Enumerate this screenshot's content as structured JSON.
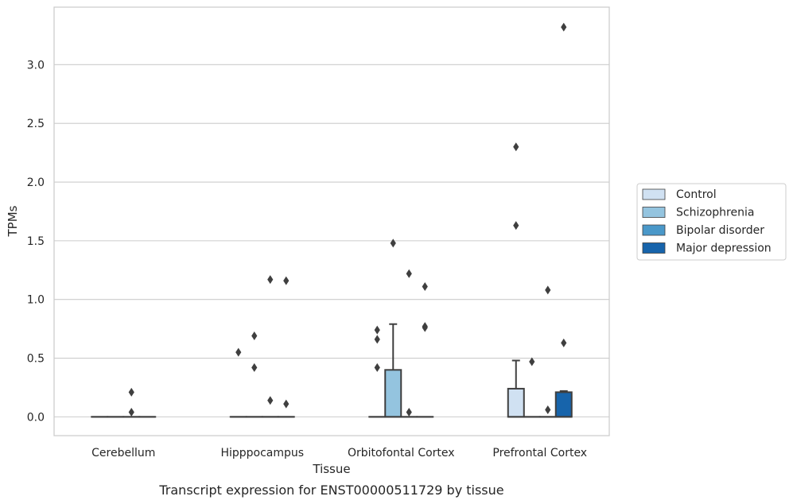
{
  "chart_data": {
    "type": "box",
    "xlabel": "Tissue",
    "ylabel": "TPMs",
    "caption": "Transcript expression for ENST00000511729 by tissue",
    "ylim": [
      -0.16,
      3.49
    ],
    "yticks": [
      "0.0",
      "0.5",
      "1.0",
      "1.5",
      "2.0",
      "2.5",
      "3.0"
    ],
    "grid": "horizontal",
    "legend_placement": "right",
    "categories": [
      "Cerebellum",
      "Hipppocampus",
      "Orbitofontal Cortex",
      "Prefrontal Cortex"
    ],
    "series": [
      {
        "name": "Control",
        "color": "#d0e1f2"
      },
      {
        "name": "Schizophrenia",
        "color": "#94c4df"
      },
      {
        "name": "Bipolar disorder",
        "color": "#4a98c9"
      },
      {
        "name": "Major depression",
        "color": "#1764ab"
      }
    ],
    "boxes": [
      {
        "category": 0,
        "series": 0,
        "q1": 0,
        "median": 0,
        "q3": 0,
        "whisker_low": 0,
        "whisker_high": 0,
        "outliers": []
      },
      {
        "category": 0,
        "series": 1,
        "q1": 0,
        "median": 0,
        "q3": 0,
        "whisker_low": 0,
        "whisker_high": 0,
        "outliers": []
      },
      {
        "category": 0,
        "series": 2,
        "q1": 0,
        "median": 0,
        "q3": 0,
        "whisker_low": 0,
        "whisker_high": 0,
        "outliers": [
          0.21,
          0.04
        ]
      },
      {
        "category": 0,
        "series": 3,
        "q1": 0,
        "median": 0,
        "q3": 0,
        "whisker_low": 0,
        "whisker_high": 0,
        "outliers": []
      },
      {
        "category": 1,
        "series": 0,
        "q1": 0,
        "median": 0,
        "q3": 0,
        "whisker_low": 0,
        "whisker_high": 0,
        "outliers": [
          0.55
        ]
      },
      {
        "category": 1,
        "series": 1,
        "q1": 0,
        "median": 0,
        "q3": 0,
        "whisker_low": 0,
        "whisker_high": 0,
        "outliers": [
          0.69,
          0.42
        ]
      },
      {
        "category": 1,
        "series": 2,
        "q1": 0,
        "median": 0,
        "q3": 0,
        "whisker_low": 0,
        "whisker_high": 0,
        "outliers": [
          1.17,
          0.14
        ]
      },
      {
        "category": 1,
        "series": 3,
        "q1": 0,
        "median": 0,
        "q3": 0,
        "whisker_low": 0,
        "whisker_high": 0,
        "outliers": [
          1.16,
          0.11
        ]
      },
      {
        "category": 2,
        "series": 0,
        "q1": 0,
        "median": 0,
        "q3": 0,
        "whisker_low": 0,
        "whisker_high": 0,
        "outliers": [
          0.74,
          0.66,
          0.42
        ]
      },
      {
        "category": 2,
        "series": 1,
        "q1": 0,
        "median": 0,
        "q3": 0.4,
        "whisker_low": 0,
        "whisker_high": 0.79,
        "outliers": [
          1.48
        ]
      },
      {
        "category": 2,
        "series": 2,
        "q1": 0,
        "median": 0,
        "q3": 0,
        "whisker_low": 0,
        "whisker_high": 0,
        "outliers": [
          1.22,
          0.04
        ]
      },
      {
        "category": 2,
        "series": 3,
        "q1": 0,
        "median": 0,
        "q3": 0,
        "whisker_low": 0,
        "whisker_high": 0,
        "outliers": [
          1.11,
          0.77,
          0.76
        ]
      },
      {
        "category": 3,
        "series": 0,
        "q1": 0,
        "median": 0,
        "q3": 0.24,
        "whisker_low": 0,
        "whisker_high": 0.48,
        "outliers": [
          2.3,
          1.63
        ]
      },
      {
        "category": 3,
        "series": 1,
        "q1": 0,
        "median": 0,
        "q3": 0,
        "whisker_low": 0,
        "whisker_high": 0,
        "outliers": [
          0.47
        ]
      },
      {
        "category": 3,
        "series": 2,
        "q1": 0,
        "median": 0,
        "q3": 0,
        "whisker_low": 0,
        "whisker_high": 0,
        "outliers": [
          1.08,
          0.06
        ]
      },
      {
        "category": 3,
        "series": 3,
        "q1": 0,
        "median": 0,
        "q3": 0.21,
        "whisker_low": 0,
        "whisker_high": 0.22,
        "outliers": [
          3.32,
          0.63
        ]
      }
    ]
  }
}
